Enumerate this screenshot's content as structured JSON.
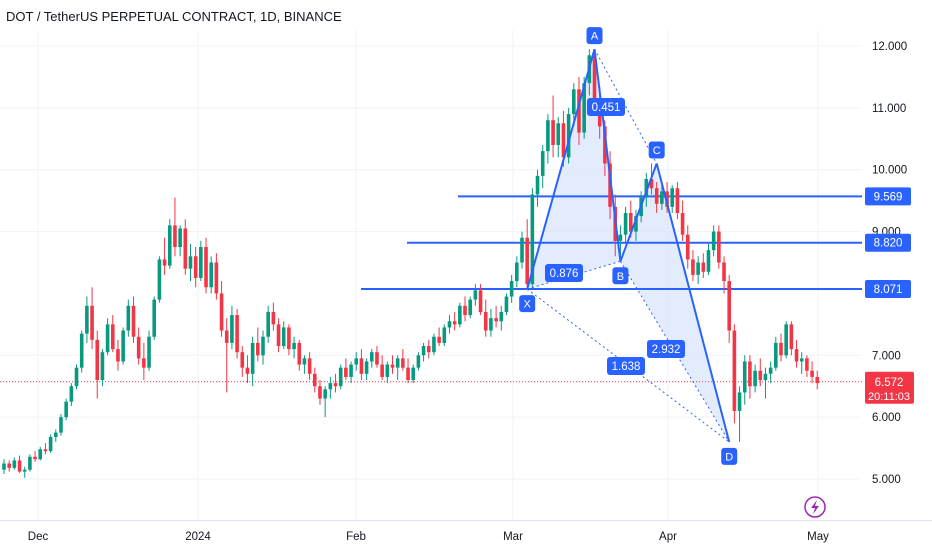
{
  "header": {
    "title": "DOT / TetherUS PERPETUAL CONTRACT, 1D, BINANCE"
  },
  "colors": {
    "up": "#089981",
    "down": "#f23645",
    "pattern": "#2962ff",
    "fill": "#d6e4fb",
    "last_price": "#f23645",
    "text": "#131722",
    "axis_text": "#131722"
  },
  "chart_data": {
    "type": "candlestick",
    "symbol": "DOT / TetherUS PERPETUAL CONTRACT",
    "interval": "1D",
    "exchange": "BINANCE",
    "ylim": [
      4.65,
      12.4
    ],
    "y_ticks": [
      "12.000",
      "11.000",
      "10.000",
      "9.000",
      "7.000",
      "6.000",
      "5.000"
    ],
    "x_ticks": [
      "Dec",
      "2024",
      "Feb",
      "Mar",
      "Apr",
      "May"
    ],
    "pattern": {
      "points": [
        {
          "label": "X",
          "price": 8.07
        },
        {
          "label": "A",
          "price": 11.95
        },
        {
          "label": "B",
          "price": 8.52
        },
        {
          "label": "C",
          "price": 10.1
        },
        {
          "label": "D",
          "price": 5.6
        }
      ],
      "ratios": [
        "0.451",
        "0.876",
        "1.638",
        "2.932"
      ]
    },
    "levels": [
      {
        "label": "9.569",
        "price": 9.569
      },
      {
        "label": "8.820",
        "price": 8.82
      },
      {
        "label": "8.071",
        "price": 8.071
      }
    ],
    "last_price": {
      "label": "6.572",
      "price": 6.572,
      "countdown": "20:11:03"
    },
    "candles": [
      [
        5.15,
        5.32,
        5.08,
        5.25
      ],
      [
        5.25,
        5.3,
        5.12,
        5.18
      ],
      [
        5.18,
        5.35,
        5.15,
        5.3
      ],
      [
        5.3,
        5.38,
        5.1,
        5.12
      ],
      [
        5.12,
        5.2,
        5.02,
        5.15
      ],
      [
        5.15,
        5.4,
        5.12,
        5.36
      ],
      [
        5.36,
        5.45,
        5.28,
        5.32
      ],
      [
        5.32,
        5.52,
        5.3,
        5.48
      ],
      [
        5.48,
        5.58,
        5.4,
        5.45
      ],
      [
        5.45,
        5.72,
        5.42,
        5.68
      ],
      [
        5.68,
        5.8,
        5.6,
        5.75
      ],
      [
        5.75,
        6.05,
        5.7,
        6.0
      ],
      [
        6.0,
        6.3,
        5.95,
        6.25
      ],
      [
        6.25,
        6.55,
        6.18,
        6.5
      ],
      [
        6.5,
        6.85,
        6.45,
        6.8
      ],
      [
        6.8,
        7.4,
        6.72,
        7.35
      ],
      [
        7.35,
        7.95,
        7.2,
        7.8
      ],
      [
        7.8,
        8.1,
        7.1,
        7.25
      ],
      [
        7.25,
        7.4,
        6.3,
        6.6
      ],
      [
        6.6,
        7.1,
        6.5,
        7.05
      ],
      [
        7.05,
        7.6,
        7.0,
        7.5
      ],
      [
        7.5,
        7.65,
        7.05,
        7.1
      ],
      [
        7.1,
        7.25,
        6.75,
        6.9
      ],
      [
        6.9,
        7.45,
        6.85,
        7.4
      ],
      [
        7.4,
        7.9,
        7.3,
        7.8
      ],
      [
        7.8,
        7.95,
        7.2,
        7.3
      ],
      [
        7.3,
        7.45,
        6.85,
        6.95
      ],
      [
        6.95,
        7.2,
        6.6,
        6.8
      ],
      [
        6.8,
        7.4,
        6.75,
        7.3
      ],
      [
        7.3,
        7.95,
        7.25,
        7.9
      ],
      [
        7.9,
        8.6,
        7.85,
        8.55
      ],
      [
        8.55,
        8.9,
        8.3,
        8.45
      ],
      [
        8.45,
        9.2,
        8.4,
        9.1
      ],
      [
        9.1,
        9.55,
        8.6,
        8.75
      ],
      [
        8.75,
        9.1,
        8.6,
        9.05
      ],
      [
        9.05,
        9.2,
        8.3,
        8.4
      ],
      [
        8.4,
        8.8,
        8.2,
        8.6
      ],
      [
        8.6,
        8.75,
        8.1,
        8.25
      ],
      [
        8.25,
        8.85,
        8.2,
        8.75
      ],
      [
        8.75,
        8.9,
        8.0,
        8.1
      ],
      [
        8.1,
        8.6,
        8.0,
        8.5
      ],
      [
        8.5,
        8.65,
        7.9,
        8.0
      ],
      [
        8.0,
        8.2,
        7.3,
        7.4
      ],
      [
        7.4,
        7.6,
        6.4,
        7.2
      ],
      [
        7.2,
        7.8,
        7.1,
        7.65
      ],
      [
        7.65,
        7.75,
        6.95,
        7.05
      ],
      [
        7.05,
        7.15,
        6.65,
        6.8
      ],
      [
        6.8,
        7.0,
        6.55,
        6.7
      ],
      [
        6.7,
        7.3,
        6.5,
        7.2
      ],
      [
        7.2,
        7.45,
        6.9,
        7.0
      ],
      [
        7.0,
        7.4,
        6.85,
        7.3
      ],
      [
        7.3,
        7.8,
        7.2,
        7.7
      ],
      [
        7.7,
        7.85,
        7.4,
        7.5
      ],
      [
        7.5,
        7.6,
        7.05,
        7.15
      ],
      [
        7.15,
        7.55,
        7.1,
        7.45
      ],
      [
        7.45,
        7.5,
        7.0,
        7.1
      ],
      [
        7.1,
        7.3,
        6.95,
        7.2
      ],
      [
        7.2,
        7.25,
        6.75,
        6.85
      ],
      [
        6.85,
        7.0,
        6.7,
        6.95
      ],
      [
        6.95,
        7.05,
        6.6,
        6.7
      ],
      [
        6.7,
        6.8,
        6.4,
        6.5
      ],
      [
        6.5,
        6.6,
        6.2,
        6.3
      ],
      [
        6.3,
        6.5,
        6.0,
        6.45
      ],
      [
        6.45,
        6.65,
        6.3,
        6.55
      ],
      [
        6.55,
        6.7,
        6.4,
        6.5
      ],
      [
        6.5,
        6.85,
        6.45,
        6.8
      ],
      [
        6.8,
        6.95,
        6.6,
        6.65
      ],
      [
        6.65,
        6.9,
        6.55,
        6.85
      ],
      [
        6.85,
        7.05,
        6.75,
        6.95
      ],
      [
        6.95,
        7.1,
        6.6,
        6.7
      ],
      [
        6.7,
        6.95,
        6.6,
        6.9
      ],
      [
        6.9,
        7.1,
        6.8,
        7.05
      ],
      [
        7.05,
        7.15,
        6.8,
        6.85
      ],
      [
        6.85,
        7.0,
        6.6,
        6.65
      ],
      [
        6.65,
        6.9,
        6.55,
        6.85
      ],
      [
        6.85,
        7.0,
        6.7,
        6.8
      ],
      [
        6.8,
        7.0,
        6.6,
        6.95
      ],
      [
        6.95,
        7.1,
        6.75,
        6.8
      ],
      [
        6.8,
        6.95,
        6.55,
        6.6
      ],
      [
        6.6,
        6.85,
        6.55,
        6.8
      ],
      [
        6.8,
        7.05,
        6.75,
        7.0
      ],
      [
        7.0,
        7.2,
        6.9,
        7.15
      ],
      [
        7.15,
        7.25,
        6.95,
        7.05
      ],
      [
        7.05,
        7.35,
        7.0,
        7.3
      ],
      [
        7.3,
        7.45,
        7.15,
        7.2
      ],
      [
        7.2,
        7.5,
        7.15,
        7.45
      ],
      [
        7.45,
        7.65,
        7.35,
        7.55
      ],
      [
        7.55,
        7.7,
        7.4,
        7.5
      ],
      [
        7.5,
        7.85,
        7.45,
        7.8
      ],
      [
        7.8,
        7.95,
        7.55,
        7.65
      ],
      [
        7.65,
        7.95,
        7.6,
        7.9
      ],
      [
        7.9,
        8.15,
        7.8,
        8.05
      ],
      [
        8.05,
        8.15,
        7.65,
        7.7
      ],
      [
        7.7,
        7.9,
        7.3,
        7.4
      ],
      [
        7.4,
        7.75,
        7.3,
        7.6
      ],
      [
        7.6,
        7.8,
        7.45,
        7.55
      ],
      [
        7.55,
        7.8,
        7.4,
        7.7
      ],
      [
        7.7,
        8.0,
        7.65,
        7.95
      ],
      [
        7.95,
        8.3,
        7.85,
        8.2
      ],
      [
        8.2,
        8.6,
        8.1,
        8.5
      ],
      [
        8.5,
        9.0,
        8.4,
        8.9
      ],
      [
        8.9,
        9.2,
        8.05,
        8.15
      ],
      [
        8.15,
        9.7,
        8.1,
        9.6
      ],
      [
        9.6,
        10.0,
        9.4,
        9.9
      ],
      [
        9.9,
        10.4,
        9.7,
        10.3
      ],
      [
        10.3,
        10.9,
        10.1,
        10.8
      ],
      [
        10.8,
        11.2,
        10.2,
        10.4
      ],
      [
        10.4,
        10.85,
        10.2,
        10.75
      ],
      [
        10.75,
        10.95,
        10.05,
        10.2
      ],
      [
        10.2,
        11.0,
        10.1,
        10.9
      ],
      [
        10.9,
        11.4,
        10.7,
        11.3
      ],
      [
        11.3,
        11.5,
        10.4,
        10.6
      ],
      [
        10.6,
        11.5,
        10.5,
        11.4
      ],
      [
        11.4,
        11.95,
        11.2,
        11.85
      ],
      [
        11.85,
        11.95,
        10.9,
        11.1
      ],
      [
        11.1,
        11.35,
        10.5,
        10.7
      ],
      [
        10.7,
        10.8,
        9.9,
        10.1
      ],
      [
        10.1,
        10.3,
        9.2,
        9.4
      ],
      [
        9.4,
        9.6,
        8.6,
        8.85
      ],
      [
        8.85,
        9.1,
        8.52,
        8.95
      ],
      [
        8.95,
        9.4,
        8.8,
        9.3
      ],
      [
        9.3,
        9.5,
        8.9,
        9.0
      ],
      [
        9.0,
        9.35,
        8.85,
        9.25
      ],
      [
        9.25,
        9.65,
        9.15,
        9.55
      ],
      [
        9.55,
        9.95,
        9.4,
        9.85
      ],
      [
        9.85,
        10.1,
        9.6,
        9.7
      ],
      [
        9.7,
        9.8,
        9.3,
        9.45
      ],
      [
        9.45,
        9.75,
        9.35,
        9.65
      ],
      [
        9.65,
        9.8,
        9.3,
        9.4
      ],
      [
        9.4,
        9.75,
        9.3,
        9.7
      ],
      [
        9.7,
        9.8,
        9.2,
        9.3
      ],
      [
        9.3,
        9.5,
        8.85,
        8.95
      ],
      [
        8.95,
        9.1,
        8.4,
        8.55
      ],
      [
        8.55,
        8.7,
        8.2,
        8.3
      ],
      [
        8.3,
        8.6,
        8.15,
        8.5
      ],
      [
        8.5,
        8.65,
        8.25,
        8.35
      ],
      [
        8.35,
        8.8,
        8.3,
        8.7
      ],
      [
        8.7,
        9.1,
        8.6,
        9.0
      ],
      [
        9.0,
        9.1,
        8.4,
        8.5
      ],
      [
        8.5,
        8.6,
        8.0,
        8.2
      ],
      [
        8.2,
        8.3,
        7.2,
        7.4
      ],
      [
        7.4,
        7.5,
        5.9,
        6.1
      ],
      [
        6.1,
        6.5,
        5.6,
        6.4
      ],
      [
        6.4,
        7.0,
        6.2,
        6.9
      ],
      [
        6.9,
        7.0,
        6.3,
        6.5
      ],
      [
        6.5,
        6.85,
        6.4,
        6.75
      ],
      [
        6.75,
        6.95,
        6.5,
        6.6
      ],
      [
        6.6,
        6.8,
        6.3,
        6.7
      ],
      [
        6.7,
        6.9,
        6.55,
        6.8
      ],
      [
        6.8,
        7.3,
        6.75,
        7.2
      ],
      [
        7.2,
        7.35,
        6.9,
        7.0
      ],
      [
        7.0,
        7.55,
        6.95,
        7.5
      ],
      [
        7.5,
        7.55,
        7.0,
        7.1
      ],
      [
        7.1,
        7.25,
        6.8,
        6.9
      ],
      [
        6.9,
        7.05,
        6.7,
        6.95
      ],
      [
        6.95,
        7.0,
        6.65,
        6.75
      ],
      [
        6.75,
        6.9,
        6.55,
        6.65
      ],
      [
        6.65,
        6.75,
        6.45,
        6.55
      ]
    ]
  }
}
